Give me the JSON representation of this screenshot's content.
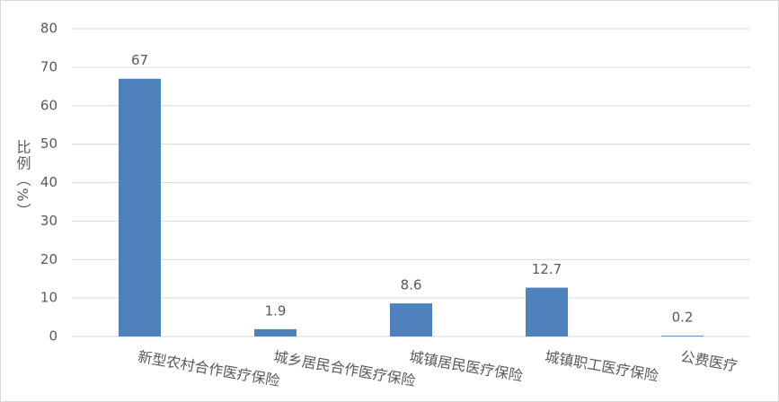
{
  "chart_data": {
    "type": "bar",
    "y_label": "比例（%）",
    "categories": [
      "新型农村合作医疗保险",
      "城乡居民合作医疗保险",
      "城镇居民医疗保险",
      "城镇职工医疗保险",
      "公费医疗"
    ],
    "values": [
      67,
      1.9,
      8.6,
      12.7,
      0.2
    ],
    "color": "#4f81bd",
    "ylim": [
      0,
      80
    ],
    "yticks": [
      0,
      10,
      20,
      30,
      40,
      50,
      60,
      70,
      80
    ],
    "grid": true
  }
}
